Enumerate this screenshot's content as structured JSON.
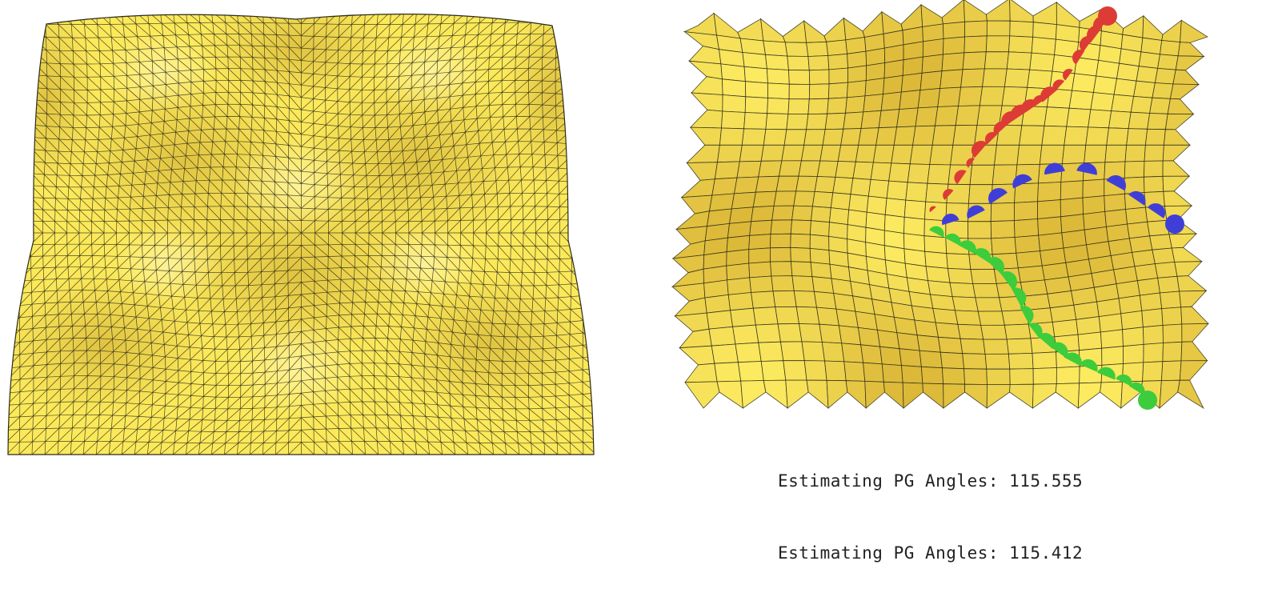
{
  "colors": {
    "mesh_fill": "#fce95a",
    "mesh_shadow": "#d6b536",
    "mesh_highlight": "#fff6b0",
    "mesh_line": "#2a2a1a",
    "path_red": "#dd3b35",
    "path_blue": "#3f3fd8",
    "path_green": "#3ccc3c"
  },
  "panels": [
    {
      "name": "triangle-mesh",
      "kind": "triangulated surface"
    },
    {
      "name": "quad-mesh",
      "kind": "quad surface with three paths"
    }
  ],
  "paths": [
    {
      "name": "red-path",
      "color": "path_red"
    },
    {
      "name": "blue-path",
      "color": "path_blue"
    },
    {
      "name": "green-path",
      "color": "path_green"
    }
  ],
  "console": {
    "lines": [
      "Estimating PG Angles: 115.555",
      "Estimating PG Angles: 115.412"
    ]
  }
}
